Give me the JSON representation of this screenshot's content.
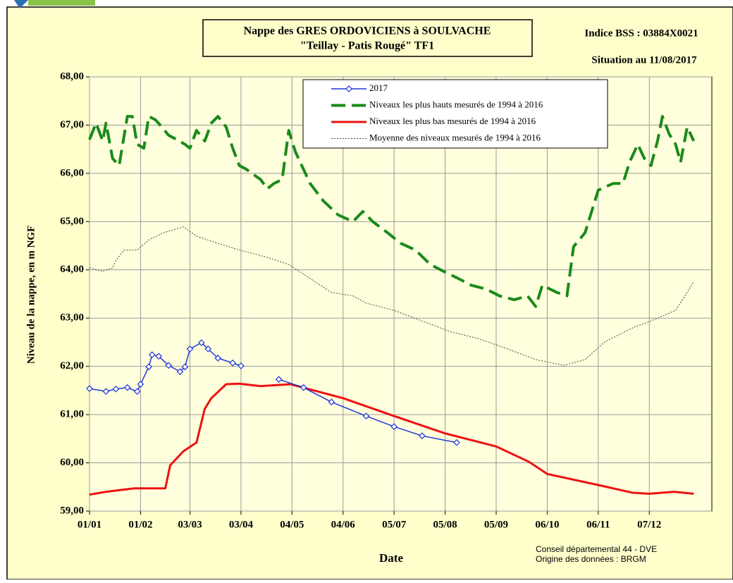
{
  "chart_data": {
    "type": "line",
    "title": "Nappe des GRES ORDOVICIENS à SOULVACHE",
    "subtitle": "\"Teillay - Patis Rougé\" TF1",
    "annotations": [
      "Indice BSS : 03884X0021",
      "Situation au 11/08/2017",
      "Conseil départemental 44 - DVE",
      "Origine des données : BRGM"
    ],
    "xlabel": "Date",
    "ylabel": "Niveau de la nappe, en m NGF",
    "xlim": [
      0,
      378
    ],
    "xticks": [
      {
        "value": 0,
        "label": "01/01"
      },
      {
        "value": 31,
        "label": "01/02"
      },
      {
        "value": 61,
        "label": "03/03"
      },
      {
        "value": 92,
        "label": "03/04"
      },
      {
        "value": 123,
        "label": "04/05"
      },
      {
        "value": 154,
        "label": "04/06"
      },
      {
        "value": 185,
        "label": "05/07"
      },
      {
        "value": 216,
        "label": "05/08"
      },
      {
        "value": 247,
        "label": "05/09"
      },
      {
        "value": 278,
        "label": "06/10"
      },
      {
        "value": 309,
        "label": "06/11"
      },
      {
        "value": 340,
        "label": "07/12"
      }
    ],
    "ylim": [
      59,
      68
    ],
    "yticks": [
      {
        "value": 59,
        "label": "59,00"
      },
      {
        "value": 60,
        "label": "60,00"
      },
      {
        "value": 61,
        "label": "61,00"
      },
      {
        "value": 62,
        "label": "62,00"
      },
      {
        "value": 63,
        "label": "63,00"
      },
      {
        "value": 64,
        "label": "64,00"
      },
      {
        "value": 65,
        "label": "65,00"
      },
      {
        "value": 66,
        "label": "66,00"
      },
      {
        "value": 67,
        "label": "67,00"
      },
      {
        "value": 68,
        "label": "68,00"
      }
    ],
    "grid": true,
    "legend": "top",
    "series": [
      {
        "name": "2017",
        "color": "#1f35d6",
        "line_style": "solid",
        "marker": "diamond",
        "x": [
          0,
          10,
          16,
          23,
          29,
          31,
          36,
          38,
          42,
          48,
          55,
          58,
          61,
          68,
          72,
          78,
          87,
          92,
          103,
          115,
          130,
          147,
          168,
          185,
          202,
          223
        ],
        "values": [
          61.54,
          61.48,
          61.53,
          61.56,
          61.48,
          61.63,
          61.99,
          62.24,
          62.21,
          62.02,
          61.89,
          61.99,
          62.36,
          62.49,
          62.36,
          62.17,
          62.07,
          62.01,
          null,
          61.73,
          61.56,
          61.26,
          60.97,
          60.75,
          60.56,
          60.42
        ]
      },
      {
        "name": "Niveaux les plus hauts mesurés de 1994 à 2016",
        "color": "#1a8a1a",
        "line_style": "dashed",
        "x": [
          0,
          4,
          8,
          10,
          14,
          18,
          23,
          26,
          29,
          33,
          36,
          40,
          44,
          48,
          53,
          58,
          61,
          65,
          70,
          74,
          78,
          83,
          87,
          91,
          95,
          104,
          108,
          112,
          117,
          121,
          125,
          134,
          142,
          151,
          160,
          166,
          172,
          181,
          189,
          198,
          207,
          215,
          224,
          232,
          241,
          249,
          258,
          266,
          271,
          275,
          284,
          290,
          294,
          301,
          309,
          318,
          324,
          328,
          333,
          337,
          341,
          345,
          348,
          352,
          356,
          359,
          363,
          367
        ],
        "values": [
          66.7,
          67.04,
          66.67,
          67.04,
          66.31,
          66.16,
          67.18,
          67.18,
          66.6,
          66.52,
          67.18,
          67.11,
          66.96,
          66.79,
          66.7,
          66.6,
          66.52,
          66.89,
          66.67,
          67.04,
          67.18,
          66.96,
          66.52,
          66.16,
          66.09,
          65.87,
          65.68,
          65.79,
          65.87,
          66.89,
          66.45,
          65.79,
          65.43,
          65.14,
          65.0,
          65.21,
          65.0,
          64.77,
          64.55,
          64.41,
          64.11,
          63.97,
          63.82,
          63.68,
          63.6,
          63.46,
          63.38,
          63.46,
          63.24,
          63.68,
          63.53,
          63.46,
          64.48,
          64.77,
          65.65,
          65.79,
          65.79,
          66.23,
          66.6,
          66.31,
          66.16,
          66.67,
          67.18,
          66.82,
          66.6,
          66.23,
          66.96,
          66.67
        ]
      },
      {
        "name": "Niveaux les plus bas mesurés de 1994 à 2016",
        "color": "#ee1111",
        "line_style": "solid",
        "x": [
          0,
          10,
          27,
          46,
          49,
          57,
          65,
          70,
          74,
          83,
          91,
          104,
          122,
          154,
          185,
          216,
          247,
          267,
          278,
          309,
          330,
          340,
          355,
          367
        ],
        "values": [
          59.34,
          59.4,
          59.47,
          59.47,
          59.95,
          60.24,
          60.42,
          61.12,
          61.34,
          61.63,
          61.64,
          61.59,
          61.63,
          61.34,
          60.97,
          60.61,
          60.34,
          60.02,
          59.77,
          59.54,
          59.38,
          59.36,
          59.4,
          59.36
        ]
      },
      {
        "name": "Moyenne des niveaux mesurés de 1994 à 2016",
        "color": "#444444",
        "line_style": "dotted",
        "x": [
          0,
          8,
          14,
          16,
          21,
          29,
          36,
          45,
          57,
          65,
          78,
          91,
          108,
          121,
          134,
          147,
          160,
          168,
          185,
          202,
          219,
          236,
          254,
          271,
          288,
          301,
          313,
          330,
          341,
          356,
          367
        ],
        "values": [
          64.04,
          63.97,
          64.04,
          64.19,
          64.41,
          64.41,
          64.62,
          64.77,
          64.89,
          64.7,
          64.55,
          64.41,
          64.26,
          64.11,
          63.82,
          63.53,
          63.46,
          63.31,
          63.16,
          62.94,
          62.72,
          62.58,
          62.36,
          62.14,
          62.02,
          62.14,
          62.51,
          62.8,
          62.94,
          63.16,
          63.75
        ]
      }
    ]
  }
}
